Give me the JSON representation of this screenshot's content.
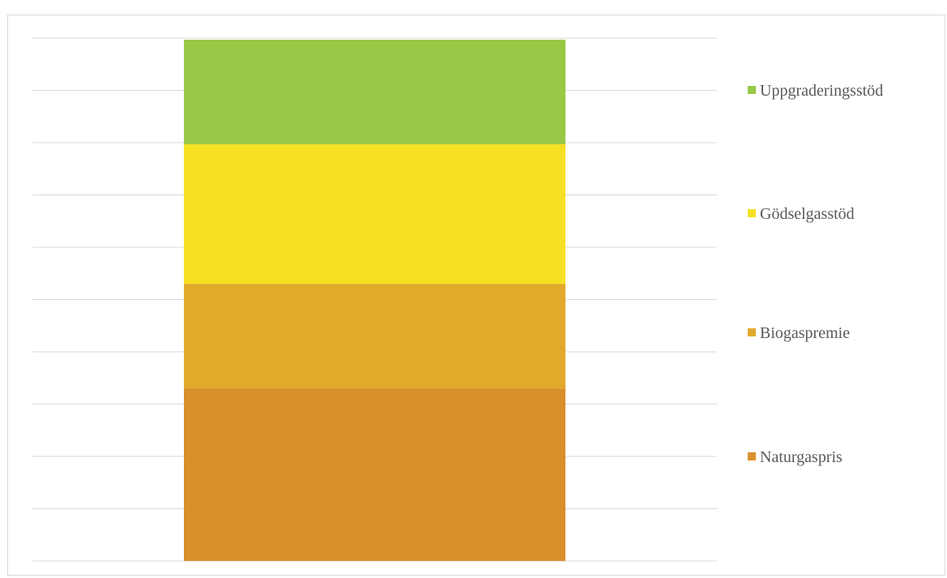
{
  "chart_data": {
    "type": "bar",
    "stacked": true,
    "categories": [
      ""
    ],
    "series": [
      {
        "name": "Naturgaspris",
        "values": [
          3.3
        ],
        "color": "#D98F2B"
      },
      {
        "name": "Biogaspremie",
        "values": [
          2.0
        ],
        "color": "#E3A92B"
      },
      {
        "name": "Gödselgasstöd",
        "values": [
          2.67
        ],
        "color": "#F5E022"
      },
      {
        "name": "Uppgraderingsstöd",
        "values": [
          2.0
        ],
        "color": "#98C946"
      }
    ],
    "ylim": [
      0,
      10
    ],
    "grid": true,
    "legend": "right",
    "title": "",
    "xlabel": "",
    "ylabel": ""
  }
}
